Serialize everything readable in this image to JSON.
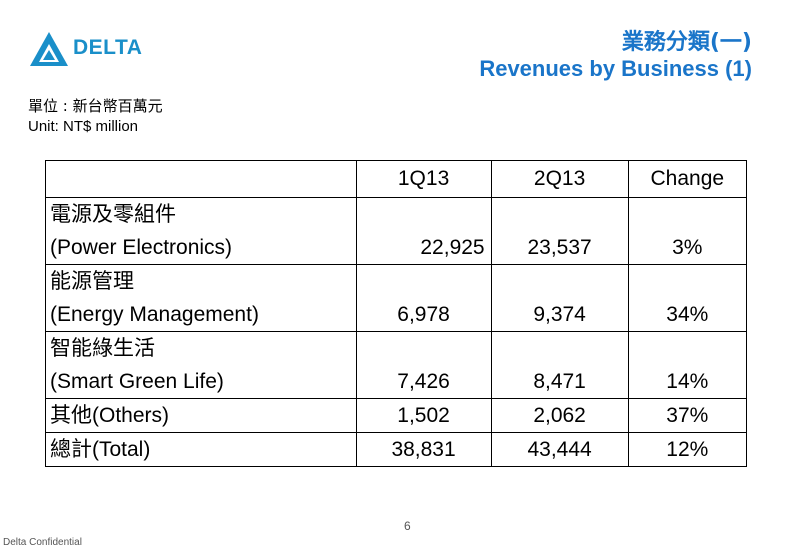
{
  "brand": {
    "logo_text": "DELTA",
    "logo_color": "#1a8fc9"
  },
  "title": {
    "zh": "業務分類(一)",
    "en": "Revenues by Business (1)",
    "color": "#1a75c9"
  },
  "unit": {
    "zh": "單位 : 新台幣百萬元",
    "en": "Unit: NT$ million"
  },
  "table": {
    "headers": [
      "",
      "1Q13",
      "2Q13",
      "Change"
    ],
    "rows": [
      {
        "zh": "電源及零組件",
        "en": "(Power Electronics)",
        "q1": "22,925",
        "q2": "23,537",
        "change": "3%"
      },
      {
        "zh": "能源管理",
        "en": "(Energy Management)",
        "q1": "6,978",
        "q2": "9,374",
        "change": "34%"
      },
      {
        "zh": "智能綠生活",
        "en": "(Smart Green Life)",
        "q1": "7,426",
        "q2": "8,471",
        "change": "14%"
      },
      {
        "label": "其他(Others)",
        "q1": "1,502",
        "q2": "2,062",
        "change": "37%"
      },
      {
        "label": "總計(Total)",
        "q1": "38,831",
        "q2": "43,444",
        "change": "12%"
      }
    ]
  },
  "page_number": "6",
  "footer": "Delta Confidential"
}
